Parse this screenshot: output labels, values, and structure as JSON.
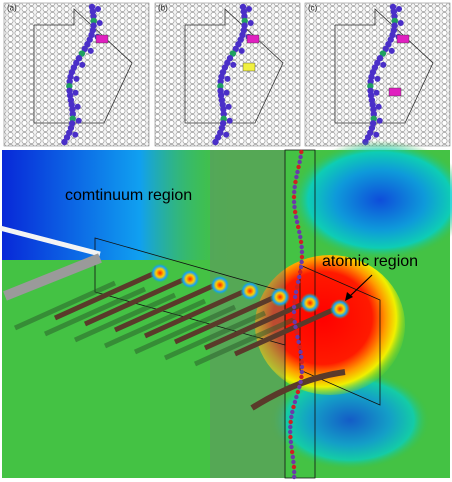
{
  "panels": [
    {
      "label": "(a)"
    },
    {
      "label": "(b)"
    },
    {
      "label": "(c)"
    }
  ],
  "main": {
    "continuum_label": "comtinuum region",
    "atomic_label": "atomic region"
  }
}
